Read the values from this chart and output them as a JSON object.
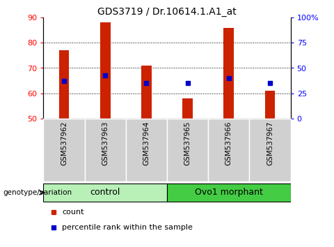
{
  "title": "GDS3719 / Dr.10614.1.A1_at",
  "samples": [
    "GSM537962",
    "GSM537963",
    "GSM537964",
    "GSM537965",
    "GSM537966",
    "GSM537967"
  ],
  "bar_tops": [
    77,
    88,
    71,
    58,
    86,
    61
  ],
  "bar_base": 50,
  "percentile_values": [
    65,
    67,
    64,
    64,
    66,
    64
  ],
  "bar_color": "#cc2200",
  "percentile_color": "#0000cc",
  "ylim_left": [
    50,
    90
  ],
  "ylim_right": [
    0,
    100
  ],
  "yticks_left": [
    50,
    60,
    70,
    80,
    90
  ],
  "yticks_right": [
    0,
    25,
    50,
    75,
    100
  ],
  "ytick_labels_right": [
    "0",
    "25",
    "50",
    "75",
    "100%"
  ],
  "groups": [
    {
      "label": "control",
      "indices": [
        0,
        1,
        2
      ]
    },
    {
      "label": "Ovo1 morphant",
      "indices": [
        3,
        4,
        5
      ]
    }
  ],
  "group_color_light": "#b8f0b8",
  "group_color_dark": "#44cc44",
  "group_label": "genotype/variation",
  "legend_items": [
    {
      "label": "count",
      "color": "#cc2200"
    },
    {
      "label": "percentile rank within the sample",
      "color": "#0000cc"
    }
  ],
  "bar_width": 0.25,
  "xlabel_bg": "#c8c8c8",
  "title_fontsize": 10,
  "tick_fontsize": 8,
  "label_fontsize": 8
}
